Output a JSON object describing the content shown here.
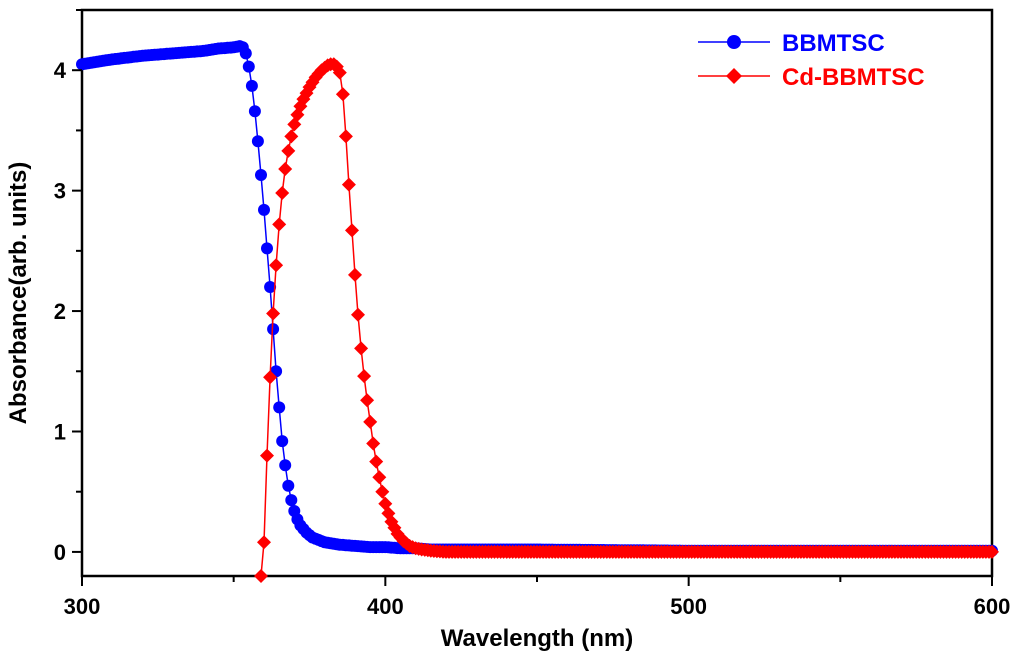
{
  "chart_data": {
    "type": "line",
    "title": "",
    "xlabel": "Wavelength (nm)",
    "ylabel": "Absorbance(arb. units)",
    "xlim": [
      300,
      600
    ],
    "ylim": [
      -0.2,
      4.5
    ],
    "x_ticks": [
      300,
      400,
      500,
      600
    ],
    "y_ticks": [
      0,
      1,
      2,
      3,
      4
    ],
    "grid": false,
    "legend_position": "top-right",
    "series": [
      {
        "name": "BBMTSC",
        "color": "#0000ff",
        "marker": "circle",
        "points": [
          [
            300,
            4.05
          ],
          [
            310,
            4.09
          ],
          [
            320,
            4.12
          ],
          [
            330,
            4.14
          ],
          [
            340,
            4.16
          ],
          [
            345,
            4.18
          ],
          [
            350,
            4.19
          ],
          [
            352,
            4.2
          ],
          [
            353,
            4.19
          ],
          [
            354,
            4.14
          ],
          [
            355,
            4.03
          ],
          [
            356,
            3.87
          ],
          [
            357,
            3.66
          ],
          [
            358,
            3.41
          ],
          [
            359,
            3.13
          ],
          [
            360,
            2.84
          ],
          [
            361,
            2.52
          ],
          [
            362,
            2.2
          ],
          [
            363,
            1.85
          ],
          [
            364,
            1.5
          ],
          [
            365,
            1.2
          ],
          [
            366,
            0.92
          ],
          [
            367,
            0.72
          ],
          [
            368,
            0.55
          ],
          [
            369,
            0.43
          ],
          [
            370,
            0.34
          ],
          [
            371,
            0.27
          ],
          [
            372,
            0.22
          ],
          [
            374,
            0.16
          ],
          [
            376,
            0.12
          ],
          [
            378,
            0.1
          ],
          [
            380,
            0.08
          ],
          [
            385,
            0.06
          ],
          [
            390,
            0.05
          ],
          [
            395,
            0.04
          ],
          [
            400,
            0.04
          ],
          [
            405,
            0.03
          ],
          [
            410,
            0.03
          ],
          [
            415,
            0.02
          ],
          [
            420,
            0.02
          ],
          [
            450,
            0.02
          ],
          [
            500,
            0.01
          ],
          [
            550,
            0.01
          ],
          [
            600,
            0.01
          ]
        ]
      },
      {
        "name": "Cd-BBMTSC",
        "color": "#ff0000",
        "marker": "diamond",
        "points": [
          [
            359,
            -0.2
          ],
          [
            360,
            0.08
          ],
          [
            361,
            0.8
          ],
          [
            362,
            1.45
          ],
          [
            363,
            1.98
          ],
          [
            364,
            2.38
          ],
          [
            365,
            2.72
          ],
          [
            366,
            2.98
          ],
          [
            367,
            3.18
          ],
          [
            368,
            3.33
          ],
          [
            369,
            3.45
          ],
          [
            370,
            3.55
          ],
          [
            371,
            3.63
          ],
          [
            372,
            3.7
          ],
          [
            373,
            3.76
          ],
          [
            374,
            3.81
          ],
          [
            375,
            3.86
          ],
          [
            376,
            3.9
          ],
          [
            377,
            3.94
          ],
          [
            378,
            3.97
          ],
          [
            379,
            4.0
          ],
          [
            380,
            4.02
          ],
          [
            381,
            4.04
          ],
          [
            382,
            4.05
          ],
          [
            383,
            4.05
          ],
          [
            384,
            4.03
          ],
          [
            385,
            3.98
          ],
          [
            386,
            3.8
          ],
          [
            387,
            3.45
          ],
          [
            388,
            3.05
          ],
          [
            389,
            2.67
          ],
          [
            390,
            2.3
          ],
          [
            391,
            1.97
          ],
          [
            392,
            1.69
          ],
          [
            393,
            1.46
          ],
          [
            394,
            1.26
          ],
          [
            395,
            1.08
          ],
          [
            396,
            0.9
          ],
          [
            397,
            0.75
          ],
          [
            398,
            0.62
          ],
          [
            399,
            0.5
          ],
          [
            400,
            0.4
          ],
          [
            401,
            0.32
          ],
          [
            402,
            0.25
          ],
          [
            403,
            0.2
          ],
          [
            404,
            0.15
          ],
          [
            405,
            0.12
          ],
          [
            406,
            0.09
          ],
          [
            407,
            0.07
          ],
          [
            408,
            0.05
          ],
          [
            410,
            0.03
          ],
          [
            412,
            0.02
          ],
          [
            415,
            0.01
          ],
          [
            420,
            0.0
          ],
          [
            450,
            0.0
          ],
          [
            500,
            0.0
          ],
          [
            550,
            0.0
          ],
          [
            600,
            0.0
          ]
        ]
      }
    ]
  }
}
